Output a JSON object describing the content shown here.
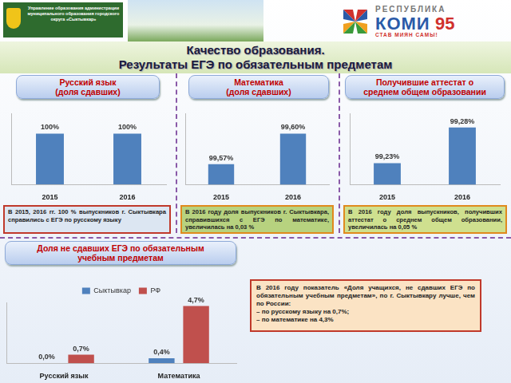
{
  "header": {
    "organization": "Управление образования администрации муниципального образования городского округа «Сыктывкар»",
    "logo": [
      "РЕСПУБЛИКА",
      "КОМИ",
      "95",
      "СТАВ МИЯН САМЫ!"
    ]
  },
  "title": [
    "Качество образования.",
    "Результаты ЕГЭ по обязательным предметам"
  ],
  "chart_data": [
    {
      "type": "bar",
      "title": [
        "Русский язык",
        "(доля сдавших)"
      ],
      "categories": [
        "2015",
        "2016"
      ],
      "values": [
        100,
        100
      ],
      "value_labels": [
        "100%",
        "100%"
      ],
      "color": "#4f81bd",
      "ylim": [
        0,
        140
      ],
      "yticks": [],
      "grid": false,
      "data_labels": true,
      "tick_labels": "x",
      "annotations": [
        "В 2015, 2016 гг. 100 % выпускников г. Сыктывкара справились с ЕГЭ по русскому языку"
      ]
    },
    {
      "type": "bar",
      "title": [
        "Математика",
        "(доля сдавших)"
      ],
      "categories": [
        "2015",
        "2016"
      ],
      "values": [
        99.57,
        99.6
      ],
      "value_labels": [
        "99,57%",
        "99,60%"
      ],
      "color": "#4f81bd",
      "ylim": [
        99.55,
        99.62
      ],
      "yticks": [],
      "grid": false,
      "data_labels": true,
      "tick_labels": "x",
      "annotations": [
        "В 2016 году доля выпускников г. Сыктывкара, справившихся с ЕГЭ по математике, увеличилась на 0,03 %"
      ]
    },
    {
      "type": "bar",
      "title": [
        "Получившие аттестат о",
        "среднем общем образовании"
      ],
      "categories": [
        "2015",
        "2016"
      ],
      "values": [
        99.23,
        99.28
      ],
      "value_labels": [
        "99,23%",
        "99,28%"
      ],
      "color": "#4f81bd",
      "ylim": [
        99.2,
        99.3
      ],
      "yticks": [],
      "grid": false,
      "data_labels": true,
      "tick_labels": "x",
      "annotations": [
        "В 2016 году доля выпускников, получивших аттестат о среднем общем образовании, увеличилась на 0,05 %"
      ]
    },
    {
      "type": "bar",
      "title": [
        "Доля не сдавших ЕГЭ по обязательным",
        "учебным предметам"
      ],
      "categories": [
        "Русский язык",
        "Математика"
      ],
      "series": [
        {
          "name": "Сыктывкар",
          "color": "#4f81bd",
          "values": [
            0.0,
            0.4
          ],
          "value_labels": [
            "0,0%",
            "0,4%"
          ]
        },
        {
          "name": "РФ",
          "color": "#c0504d",
          "values": [
            0.7,
            4.7
          ],
          "value_labels": [
            "0,7%",
            "4,7%"
          ]
        }
      ],
      "ylim": [
        0,
        5
      ],
      "yticks": [],
      "grid": false,
      "data_labels": true,
      "tick_labels": "x",
      "legend": "top",
      "annotations": [
        "В 2016 году показатель «Доля учащихся, не сдавших ЕГЭ по обязательным учебным предметам», по г. Сыктывкару лучше, чем по России:",
        "–  по русскому языку на 0,7%;",
        "–  по математике на 4,3%"
      ]
    }
  ]
}
